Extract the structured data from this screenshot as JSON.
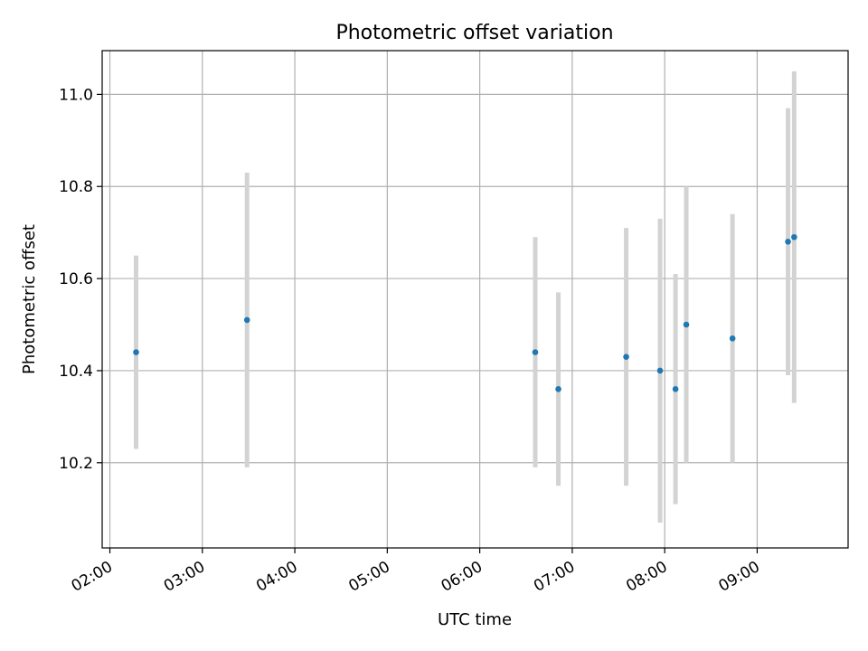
{
  "chart_data": {
    "type": "scatter",
    "title": "Photometric offset variation",
    "xlabel": "UTC time",
    "ylabel": "Photometric offset",
    "x_ticks": [
      "02:00",
      "03:00",
      "04:00",
      "05:00",
      "06:00",
      "07:00",
      "08:00",
      "09:00"
    ],
    "y_ticks": [
      "10.2",
      "10.4",
      "10.6",
      "10.8",
      "11.0"
    ],
    "xlim": [
      "01:55",
      "09:59"
    ],
    "ylim": [
      10.015,
      11.095
    ],
    "grid": true,
    "legend": "none",
    "colors": {
      "points": "#1f77b4",
      "errorbars": "#d3d3d3",
      "grid": "#b0b0b0"
    },
    "points": [
      {
        "x": "02:17",
        "y": 10.44,
        "yerr": 0.21
      },
      {
        "x": "03:29",
        "y": 10.51,
        "yerr": 0.32
      },
      {
        "x": "06:36",
        "y": 10.44,
        "yerr": 0.25
      },
      {
        "x": "06:51",
        "y": 10.36,
        "yerr": 0.21
      },
      {
        "x": "07:35",
        "y": 10.43,
        "yerr": 0.28
      },
      {
        "x": "07:57",
        "y": 10.4,
        "yerr": 0.33
      },
      {
        "x": "08:07",
        "y": 10.36,
        "yerr": 0.25
      },
      {
        "x": "08:14",
        "y": 10.5,
        "yerr": 0.3
      },
      {
        "x": "08:44",
        "y": 10.47,
        "yerr": 0.27
      },
      {
        "x": "09:20",
        "y": 10.68,
        "yerr": 0.29
      },
      {
        "x": "09:24",
        "y": 10.69,
        "yerr": 0.36
      }
    ]
  }
}
